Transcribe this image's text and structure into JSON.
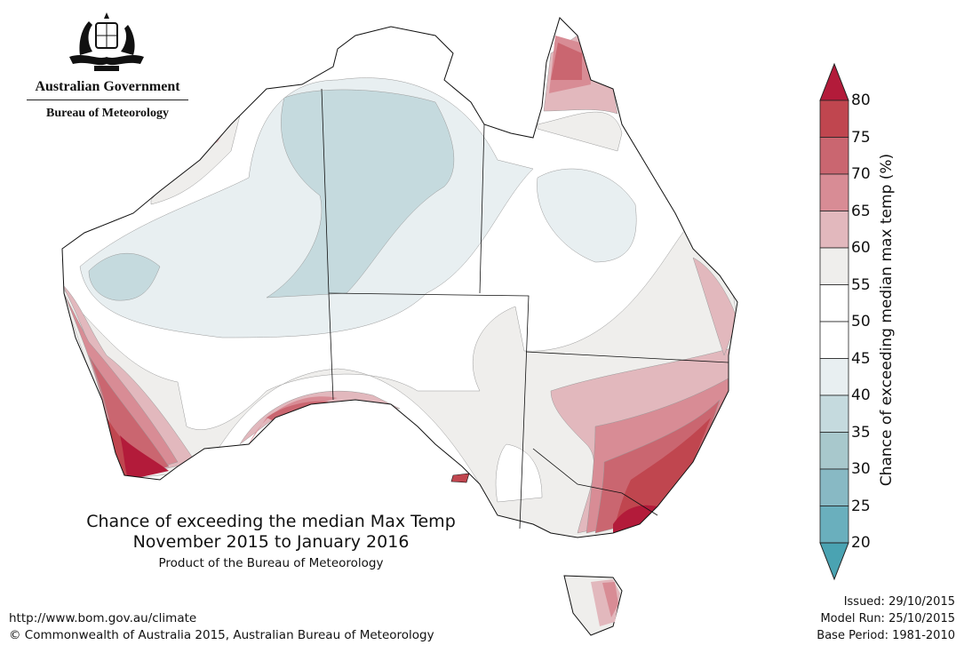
{
  "logo": {
    "line1": "Australian Government",
    "line2": "Bureau of Meteorology"
  },
  "map": {
    "title": "Chance of exceeding the median Max Temp",
    "period": "November 2015 to January 2016",
    "product": "Product of the Bureau of Meteorology"
  },
  "footer": {
    "url": "http://www.bom.gov.au/climate",
    "copyright": "© Commonwealth of Australia 2015, Australian Bureau of Meteorology"
  },
  "issue_info": {
    "issued": "Issued: 29/10/2015",
    "model_run": "Model Run: 25/10/2015",
    "base_period": "Base Period: 1981-2010"
  },
  "colorbar": {
    "title": "Chance of exceeding median max temp (%)",
    "ticks": [
      "80",
      "75",
      "70",
      "65",
      "60",
      "55",
      "50",
      "45",
      "40",
      "35",
      "30",
      "25",
      "20"
    ],
    "colors": {
      "above_80": "#b31b3a",
      "75_80": "#c0464f",
      "70_75": "#ca6670",
      "65_70": "#d88c95",
      "60_65": "#e2b8bd",
      "55_60": "#efeeec",
      "50_55": "#ffffff",
      "45_50": "#ffffff",
      "40_45": "#e8eff1",
      "35_40": "#c5dade",
      "30_35": "#a8c8cc",
      "25_30": "#88b9c4",
      "20_25": "#6aafbd",
      "below_20": "#4aa3b2"
    }
  }
}
